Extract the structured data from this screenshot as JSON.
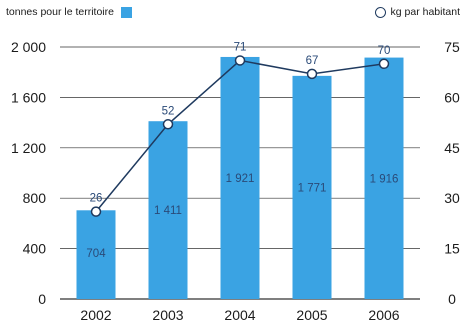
{
  "colors": {
    "bar": "#3aa3e3",
    "line": "#1f3a5f",
    "grid": "#333333",
    "barText": "#2a4a78"
  },
  "legend": {
    "bars_label": "tonnes pour le territoire",
    "line_label": "kg par habitant"
  },
  "chart_data": {
    "type": "bar",
    "categories": [
      "2002",
      "2003",
      "2004",
      "2005",
      "2006"
    ],
    "series": [
      {
        "name": "tonnes pour le territoire",
        "type": "bar",
        "axis": "left",
        "values": [
          704,
          1411,
          1921,
          1771,
          1916
        ]
      },
      {
        "name": "kg par habitant",
        "type": "line",
        "axis": "right",
        "values": [
          26,
          52,
          71,
          67,
          70
        ]
      }
    ],
    "data_labels": {
      "bars": [
        "704",
        "1 411",
        "1 921",
        "1 771",
        "1 916"
      ],
      "line": [
        "26",
        "52",
        "71",
        "67",
        "70"
      ]
    },
    "y_left": {
      "range": [
        0,
        2000
      ],
      "ticks": [
        "0",
        "400",
        "800",
        "1 200",
        "1 600",
        "2 000"
      ]
    },
    "y_right": {
      "range": [
        0,
        75
      ],
      "ticks": [
        "0",
        "15",
        "30",
        "45",
        "60",
        "75"
      ]
    },
    "grid": true,
    "legend_position": "top"
  }
}
